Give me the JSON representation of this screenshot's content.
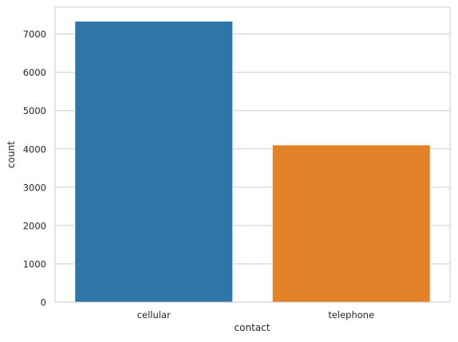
{
  "chart_data": {
    "type": "bar",
    "title": "",
    "xlabel": "contact",
    "ylabel": "count",
    "categories": [
      "cellular",
      "telephone"
    ],
    "values": [
      7335,
      4105
    ],
    "colors": [
      "#2f75a7",
      "#e38229"
    ],
    "yticks": [
      0,
      1000,
      2000,
      3000,
      4000,
      5000,
      6000,
      7000
    ],
    "ylim": [
      0,
      7700
    ],
    "grid": true,
    "grid_axis": "y",
    "legend": "none"
  }
}
